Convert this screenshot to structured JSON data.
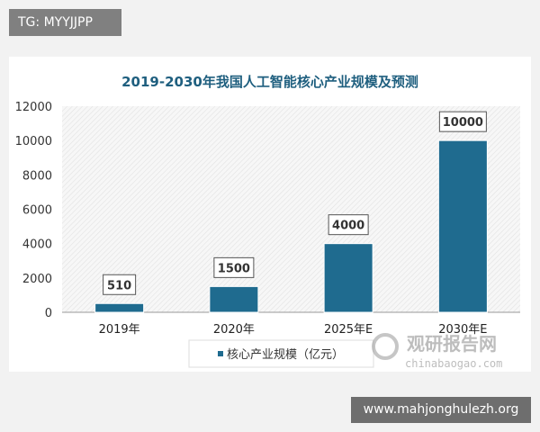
{
  "overlay": {
    "top_left_label": "TG: MYYJJPP",
    "bottom_right_label": "www.mahjonghulezh.org"
  },
  "watermark": {
    "name": "观研报告网",
    "url": "chinabaogao.com"
  },
  "colors": {
    "bar": "#1f6b8f",
    "title": "#1f5f7f",
    "background": "#f2f2f2"
  },
  "chart_data": {
    "type": "bar",
    "title": "2019-2030年我国人工智能核心产业规模及预测",
    "categories": [
      "2019年",
      "2020年",
      "2025年E",
      "2030年E"
    ],
    "series": [
      {
        "name": "核心产业规模（亿元）",
        "values": [
          510,
          1500,
          4000,
          10000
        ]
      }
    ],
    "data_labels": [
      "510",
      "1500",
      "4000",
      "10000"
    ],
    "ylim": [
      0,
      12000
    ],
    "yticks": [
      "0",
      "2000",
      "4000",
      "6000",
      "8000",
      "10000",
      "12000"
    ],
    "grid": false,
    "legend": "bottom"
  }
}
